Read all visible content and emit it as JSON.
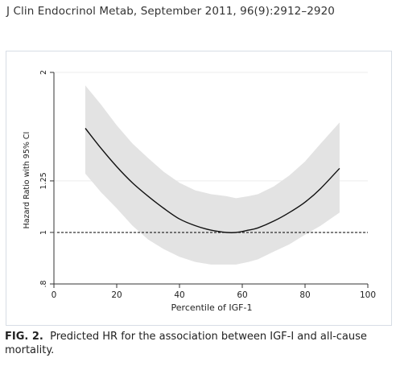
{
  "journal_header": "J Clin Endocrinol Metab, September 2011, 96(9):2912–2920",
  "caption": {
    "label": "FIG. 2.",
    "text": "Predicted HR for the association between IGF-I and all-cause mortality."
  },
  "colors": {
    "band": "#e3e3e3",
    "line": "#111111",
    "reference": "#000000",
    "plot_bg": "#ffffff",
    "frame": "#d7dde5"
  },
  "chart_data": {
    "type": "line",
    "xlabel": "Percentile of IGF-1",
    "ylabel": "Hazard Ratio with 95% CI",
    "xlim": [
      0,
      100
    ],
    "ylim": [
      0.8,
      2.0
    ],
    "log_scale_y": true,
    "grid": true,
    "xticks": [
      0,
      20,
      40,
      60,
      80,
      100
    ],
    "xtick_labels": [
      "0",
      "20",
      "40",
      "60",
      "80",
      "100"
    ],
    "yticks": [
      0.8,
      1.0,
      1.25,
      2.0
    ],
    "ytick_labels": [
      ".8",
      "1",
      "1.25",
      "2"
    ],
    "reference_line": {
      "y": 1.0,
      "style": "dashed"
    },
    "series": [
      {
        "type": "line",
        "x": [
          10,
          15,
          20,
          25,
          30,
          35,
          40,
          45,
          50,
          55,
          58,
          62,
          65,
          70,
          75,
          80,
          85,
          91
        ],
        "y": [
          1.57,
          1.44,
          1.33,
          1.24,
          1.17,
          1.11,
          1.06,
          1.03,
          1.01,
          1.0,
          1.0,
          1.01,
          1.02,
          1.05,
          1.09,
          1.14,
          1.21,
          1.32
        ]
      },
      {
        "type": "band",
        "x": [
          10,
          15,
          20,
          25,
          30,
          35,
          40,
          45,
          50,
          55,
          58,
          62,
          65,
          70,
          75,
          80,
          85,
          91
        ],
        "y_low": [
          1.29,
          1.19,
          1.11,
          1.03,
          0.97,
          0.93,
          0.9,
          0.88,
          0.87,
          0.87,
          0.87,
          0.88,
          0.89,
          0.92,
          0.95,
          0.99,
          1.03,
          1.09
        ],
        "y_high": [
          1.89,
          1.74,
          1.59,
          1.47,
          1.38,
          1.3,
          1.24,
          1.2,
          1.18,
          1.17,
          1.16,
          1.17,
          1.18,
          1.22,
          1.28,
          1.36,
          1.47,
          1.61
        ]
      }
    ]
  }
}
